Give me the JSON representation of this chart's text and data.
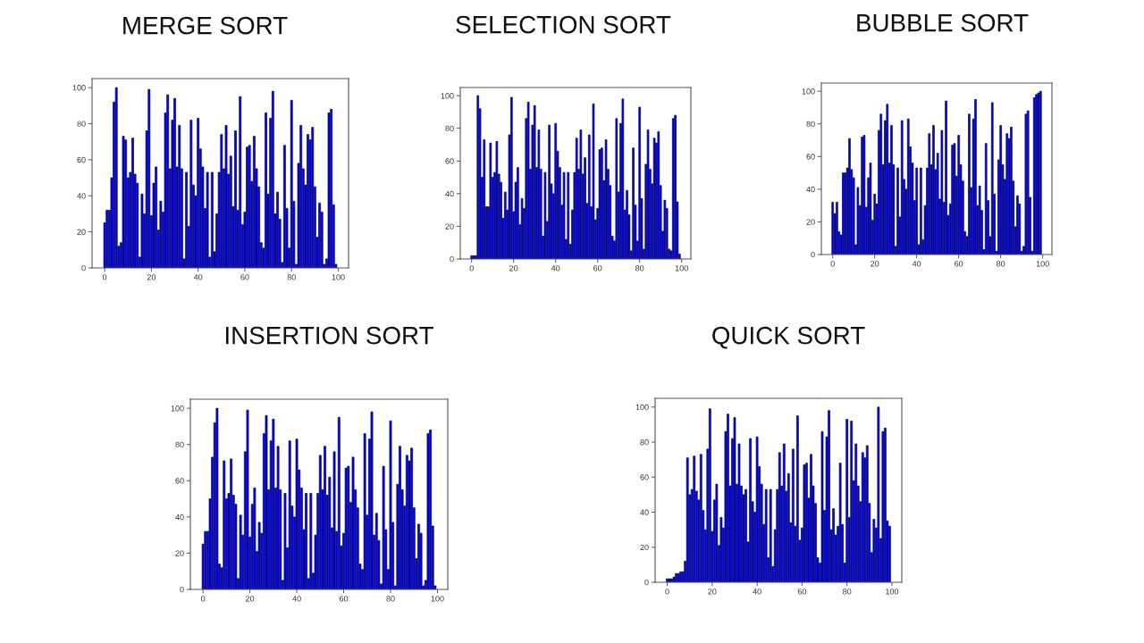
{
  "chart_data": [
    {
      "type": "bar",
      "title": "MERGE SORT",
      "color": "#0000ff",
      "xlim": [
        -5.4,
        104.4
      ],
      "ylim": [
        0,
        105
      ],
      "xticks": [
        0,
        20,
        40,
        60,
        80,
        100
      ],
      "yticks": [
        0,
        20,
        40,
        60,
        80,
        100
      ],
      "x": [
        0,
        1,
        2,
        3,
        4,
        5,
        6,
        7,
        8,
        9,
        10,
        11,
        12,
        13,
        14,
        15,
        16,
        17,
        18,
        19,
        20,
        21,
        22,
        23,
        24,
        25,
        26,
        27,
        28,
        29,
        30,
        31,
        32,
        33,
        34,
        35,
        36,
        37,
        38,
        39,
        40,
        41,
        42,
        43,
        44,
        45,
        46,
        47,
        48,
        49,
        50,
        51,
        52,
        53,
        54,
        55,
        56,
        57,
        58,
        59,
        60,
        61,
        62,
        63,
        64,
        65,
        66,
        67,
        68,
        69,
        70,
        71,
        72,
        73,
        74,
        75,
        76,
        77,
        78,
        79,
        80,
        81,
        82,
        83,
        84,
        85,
        86,
        87,
        88,
        89,
        90,
        91,
        92,
        93,
        94,
        95,
        96,
        97,
        98,
        99
      ],
      "values": [
        25,
        32,
        32,
        50,
        92,
        100,
        12,
        14,
        73,
        71,
        50,
        53,
        72,
        52,
        47,
        6,
        41,
        30,
        76,
        99,
        29,
        47,
        56,
        21,
        37,
        31,
        86,
        96,
        55,
        82,
        94,
        56,
        79,
        55,
        5,
        53,
        23,
        82,
        46,
        40,
        83,
        66,
        56,
        33,
        53,
        6,
        53,
        9,
        30,
        53,
        74,
        55,
        79,
        52,
        62,
        34,
        76,
        32,
        95,
        24,
        31,
        67,
        68,
        48,
        73,
        55,
        45,
        14,
        11,
        86,
        41,
        83,
        98,
        30,
        42,
        27,
        3,
        68,
        33,
        11,
        93,
        37,
        2,
        58,
        79,
        55,
        46,
        74,
        71,
        78,
        45,
        17,
        36,
        31,
        2,
        5,
        86,
        88,
        35,
        2
      ]
    },
    {
      "type": "bar",
      "title": "SELECTION SORT",
      "color": "#0000ff",
      "xlim": [
        -5.4,
        104.4
      ],
      "ylim": [
        0,
        105
      ],
      "xticks": [
        0,
        20,
        40,
        60,
        80,
        100
      ],
      "yticks": [
        0,
        20,
        40,
        60,
        80,
        100
      ],
      "x": [
        0,
        1,
        2,
        3,
        4,
        5,
        6,
        7,
        8,
        9,
        10,
        11,
        12,
        13,
        14,
        15,
        16,
        17,
        18,
        19,
        20,
        21,
        22,
        23,
        24,
        25,
        26,
        27,
        28,
        29,
        30,
        31,
        32,
        33,
        34,
        35,
        36,
        37,
        38,
        39,
        40,
        41,
        42,
        43,
        44,
        45,
        46,
        47,
        48,
        49,
        50,
        51,
        52,
        53,
        54,
        55,
        56,
        57,
        58,
        59,
        60,
        61,
        62,
        63,
        64,
        65,
        66,
        67,
        68,
        69,
        70,
        71,
        72,
        73,
        74,
        75,
        76,
        77,
        78,
        79,
        80,
        81,
        82,
        83,
        84,
        85,
        86,
        87,
        88,
        89,
        90,
        91,
        92,
        93,
        94,
        95,
        96,
        97,
        98,
        99
      ],
      "values": [
        2,
        2,
        2,
        100,
        92,
        50,
        73,
        32,
        32,
        71,
        50,
        53,
        72,
        52,
        47,
        25,
        41,
        30,
        76,
        99,
        29,
        47,
        56,
        21,
        37,
        31,
        86,
        96,
        55,
        82,
        94,
        56,
        79,
        55,
        14,
        53,
        23,
        82,
        46,
        40,
        83,
        66,
        56,
        33,
        53,
        12,
        53,
        9,
        30,
        53,
        74,
        55,
        79,
        52,
        62,
        34,
        76,
        32,
        95,
        24,
        31,
        67,
        68,
        48,
        73,
        55,
        45,
        14,
        11,
        86,
        41,
        83,
        98,
        30,
        42,
        27,
        5,
        68,
        33,
        11,
        93,
        37,
        6,
        58,
        79,
        55,
        46,
        74,
        71,
        78,
        45,
        17,
        36,
        31,
        6,
        5,
        86,
        88,
        35,
        3
      ]
    },
    {
      "type": "bar",
      "title": "BUBBLE SORT",
      "color": "#0000ff",
      "xlim": [
        -5.4,
        104.4
      ],
      "ylim": [
        0,
        105
      ],
      "xticks": [
        0,
        20,
        40,
        60,
        80,
        100
      ],
      "yticks": [
        0,
        20,
        40,
        60,
        80,
        100
      ],
      "x": [
        0,
        1,
        2,
        3,
        4,
        5,
        6,
        7,
        8,
        9,
        10,
        11,
        12,
        13,
        14,
        15,
        16,
        17,
        18,
        19,
        20,
        21,
        22,
        23,
        24,
        25,
        26,
        27,
        28,
        29,
        30,
        31,
        32,
        33,
        34,
        35,
        36,
        37,
        38,
        39,
        40,
        41,
        42,
        43,
        44,
        45,
        46,
        47,
        48,
        49,
        50,
        51,
        52,
        53,
        54,
        55,
        56,
        57,
        58,
        59,
        60,
        61,
        62,
        63,
        64,
        65,
        66,
        67,
        68,
        69,
        70,
        71,
        72,
        73,
        74,
        75,
        76,
        77,
        78,
        79,
        80,
        81,
        82,
        83,
        84,
        85,
        86,
        87,
        88,
        89,
        90,
        91,
        92,
        93,
        94,
        95,
        96,
        97,
        98,
        99
      ],
      "values": [
        32,
        25,
        32,
        14,
        12,
        50,
        50,
        53,
        71,
        52,
        47,
        6,
        41,
        30,
        72,
        73,
        29,
        47,
        56,
        21,
        37,
        31,
        76,
        86,
        55,
        82,
        92,
        56,
        79,
        55,
        5,
        53,
        23,
        82,
        46,
        40,
        83,
        66,
        56,
        33,
        53,
        6,
        53,
        9,
        30,
        53,
        74,
        55,
        79,
        52,
        62,
        34,
        76,
        32,
        94,
        24,
        31,
        67,
        68,
        48,
        73,
        55,
        45,
        14,
        11,
        86,
        41,
        83,
        95,
        30,
        42,
        27,
        3,
        68,
        33,
        11,
        93,
        37,
        2,
        58,
        79,
        55,
        46,
        74,
        71,
        78,
        45,
        17,
        36,
        31,
        2,
        5,
        86,
        88,
        35,
        2,
        96,
        98,
        99,
        100
      ]
    },
    {
      "type": "bar",
      "title": "INSERTION SORT",
      "color": "#0000ff",
      "xlim": [
        -5.4,
        104.4
      ],
      "ylim": [
        0,
        105
      ],
      "xticks": [
        0,
        20,
        40,
        60,
        80,
        100
      ],
      "yticks": [
        0,
        20,
        40,
        60,
        80,
        100
      ],
      "x": [
        0,
        1,
        2,
        3,
        4,
        5,
        6,
        7,
        8,
        9,
        10,
        11,
        12,
        13,
        14,
        15,
        16,
        17,
        18,
        19,
        20,
        21,
        22,
        23,
        24,
        25,
        26,
        27,
        28,
        29,
        30,
        31,
        32,
        33,
        34,
        35,
        36,
        37,
        38,
        39,
        40,
        41,
        42,
        43,
        44,
        45,
        46,
        47,
        48,
        49,
        50,
        51,
        52,
        53,
        54,
        55,
        56,
        57,
        58,
        59,
        60,
        61,
        62,
        63,
        64,
        65,
        66,
        67,
        68,
        69,
        70,
        71,
        72,
        73,
        74,
        75,
        76,
        77,
        78,
        79,
        80,
        81,
        82,
        83,
        84,
        85,
        86,
        87,
        88,
        89,
        90,
        91,
        92,
        93,
        94,
        95,
        96,
        97,
        98,
        99
      ],
      "values": [
        25,
        32,
        32,
        50,
        73,
        92,
        100,
        14,
        12,
        71,
        50,
        53,
        72,
        52,
        47,
        6,
        41,
        30,
        76,
        99,
        29,
        47,
        56,
        21,
        37,
        31,
        86,
        96,
        55,
        82,
        94,
        56,
        79,
        55,
        5,
        53,
        23,
        82,
        46,
        40,
        83,
        66,
        56,
        33,
        53,
        6,
        53,
        9,
        30,
        53,
        74,
        55,
        79,
        52,
        62,
        34,
        76,
        32,
        95,
        24,
        31,
        67,
        68,
        48,
        73,
        55,
        45,
        14,
        11,
        86,
        41,
        83,
        98,
        30,
        42,
        27,
        3,
        68,
        33,
        11,
        93,
        37,
        2,
        58,
        79,
        55,
        46,
        74,
        71,
        78,
        45,
        17,
        36,
        31,
        2,
        5,
        86,
        88,
        35,
        2
      ]
    },
    {
      "type": "bar",
      "title": "QUICK SORT",
      "color": "#0000ff",
      "xlim": [
        -5.4,
        104.4
      ],
      "ylim": [
        0,
        105
      ],
      "xticks": [
        0,
        20,
        40,
        60,
        80,
        100
      ],
      "yticks": [
        0,
        20,
        40,
        60,
        80,
        100
      ],
      "x": [
        0,
        1,
        2,
        3,
        4,
        5,
        6,
        7,
        8,
        9,
        10,
        11,
        12,
        13,
        14,
        15,
        16,
        17,
        18,
        19,
        20,
        21,
        22,
        23,
        24,
        25,
        26,
        27,
        28,
        29,
        30,
        31,
        32,
        33,
        34,
        35,
        36,
        37,
        38,
        39,
        40,
        41,
        42,
        43,
        44,
        45,
        46,
        47,
        48,
        49,
        50,
        51,
        52,
        53,
        54,
        55,
        56,
        57,
        58,
        59,
        60,
        61,
        62,
        63,
        64,
        65,
        66,
        67,
        68,
        69,
        70,
        71,
        72,
        73,
        74,
        75,
        76,
        77,
        78,
        79,
        80,
        81,
        82,
        83,
        84,
        85,
        86,
        87,
        88,
        89,
        90,
        91,
        92,
        93,
        94,
        95,
        96,
        97,
        98,
        99
      ],
      "values": [
        2,
        2,
        2,
        3,
        5,
        5,
        6,
        6,
        12,
        71,
        50,
        53,
        72,
        52,
        47,
        73,
        41,
        30,
        76,
        99,
        29,
        47,
        56,
        21,
        37,
        31,
        86,
        96,
        55,
        82,
        94,
        56,
        79,
        55,
        50,
        53,
        23,
        82,
        46,
        40,
        83,
        66,
        56,
        33,
        53,
        14,
        53,
        9,
        30,
        53,
        74,
        55,
        79,
        52,
        62,
        34,
        76,
        32,
        95,
        24,
        31,
        67,
        68,
        48,
        73,
        55,
        45,
        14,
        11,
        86,
        41,
        83,
        98,
        30,
        42,
        27,
        32,
        68,
        33,
        11,
        93,
        37,
        92,
        58,
        79,
        55,
        46,
        74,
        71,
        78,
        45,
        17,
        36,
        31,
        100,
        25,
        86,
        88,
        35,
        32
      ]
    }
  ]
}
